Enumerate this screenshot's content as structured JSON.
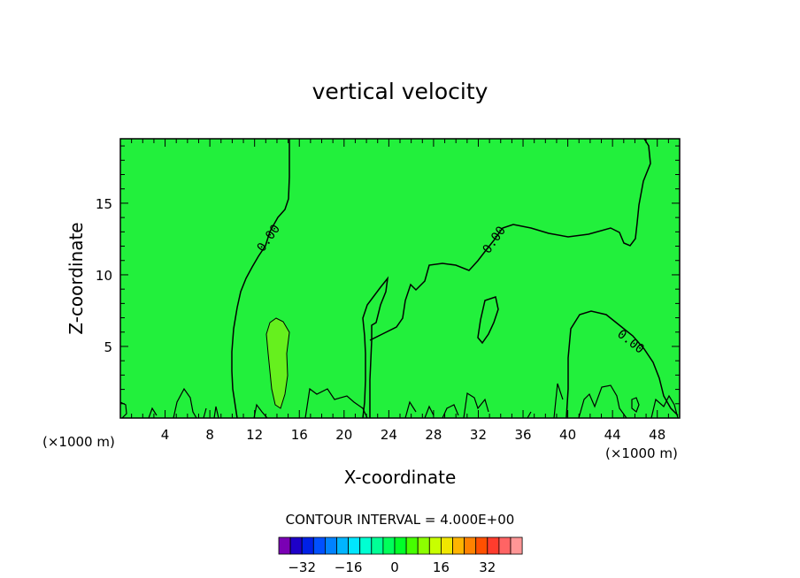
{
  "chart_data": {
    "type": "contour",
    "title": "vertical velocity",
    "xlabel": "X-coordinate",
    "ylabel": "Z-coordinate",
    "x_unit": "(×1000 m)",
    "z_unit": "(×1000 m)",
    "xlim": [
      0,
      50
    ],
    "ylim": [
      0,
      19.5
    ],
    "x_ticks": [
      4,
      8,
      12,
      16,
      20,
      24,
      28,
      32,
      36,
      40,
      44,
      48
    ],
    "y_ticks": [
      5,
      10,
      15
    ],
    "contour_interval_text": "CONTOUR INTERVAL = 4.000E+00",
    "contour_labels": [
      "0.00",
      "0.00",
      "0.00"
    ],
    "colorbar": {
      "colors": [
        "#7a00b4",
        "#1e00c8",
        "#0020e6",
        "#0050ff",
        "#0082ff",
        "#00b4ff",
        "#00e6ff",
        "#00ffd2",
        "#00ff96",
        "#00ff5a",
        "#00ff28",
        "#46ff00",
        "#8cff00",
        "#c8ff00",
        "#f0e600",
        "#ffb400",
        "#ff8200",
        "#ff5000",
        "#ff3c2d",
        "#ff6464",
        "#ff9696"
      ],
      "tick_labels": [
        "-32",
        "-16",
        "0",
        "16",
        "32"
      ],
      "tick_values": [
        -32,
        -16,
        0,
        16,
        32
      ]
    },
    "background_fill": "#22f03c",
    "updraft_fill": "#66f01e"
  }
}
